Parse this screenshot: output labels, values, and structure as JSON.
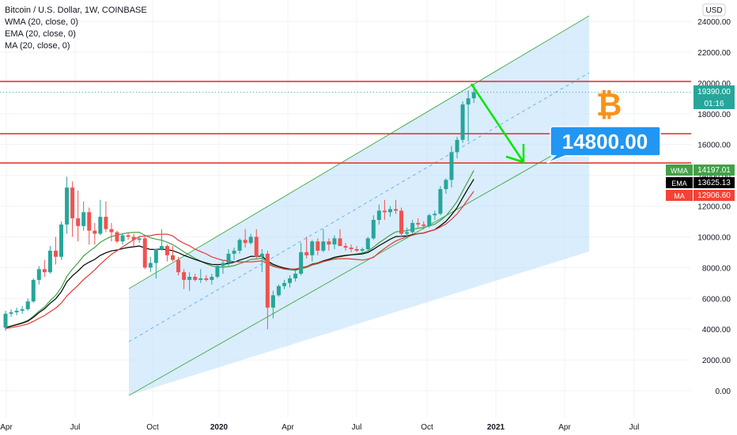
{
  "legend": {
    "title": "Bitcoin / U.S. Dollar, 1W, COINBASE",
    "wma": "WMA (20, close, 0)",
    "ema": "EMA (20, close, 0)",
    "ma": "MA (20, close, 0)"
  },
  "currency": "USD",
  "colors": {
    "up": "#26a69a",
    "down": "#ef5350",
    "wma": "#43a047",
    "ema": "#000000",
    "ma": "#e53935",
    "channel_fill": "#bbdefb",
    "channel_line": "#4caf50",
    "hline": "#e53935",
    "arrow": "#00e600",
    "callout": "#2196f3",
    "bitcoin": "#f7931a"
  },
  "yaxis_ticks": [
    "24000.00",
    "22000.00",
    "20000.00",
    "18000.00",
    "16000.00",
    "14000.00",
    "12000.00",
    "10000.00",
    "8000.00",
    "6000.00",
    "4000.00",
    "2000.00",
    "0.00"
  ],
  "xaxis_ticks": [
    {
      "label": "Apr",
      "bold": false
    },
    {
      "label": "Jul",
      "bold": false
    },
    {
      "label": "Oct",
      "bold": false
    },
    {
      "label": "2020",
      "bold": true
    },
    {
      "label": "Apr",
      "bold": false
    },
    {
      "label": "Jul",
      "bold": false
    },
    {
      "label": "Oct",
      "bold": false
    },
    {
      "label": "2021",
      "bold": true
    },
    {
      "label": "Apr",
      "bold": false
    },
    {
      "label": "Jul",
      "bold": false
    }
  ],
  "price_labels": {
    "last": "19390.00",
    "countdown": "01:16",
    "wma_label": "WMA",
    "wma_value": "14197.01",
    "ema_label": "EMA",
    "ema_value": "13625.13",
    "ma_label": "MA",
    "ma_value": "12906.60"
  },
  "callout": "14800.00",
  "bitcoin_symbol": "₿",
  "chart_data": {
    "type": "candlestick",
    "title": "Bitcoin / U.S. Dollar, 1W, COINBASE",
    "ylim": [
      -1000,
      25000
    ],
    "y_unit": "USD",
    "horizontal_lines": [
      20100,
      16700,
      14800
    ],
    "last_price": 19390,
    "candles": [
      [
        4100,
        5200,
        3900,
        5000
      ],
      [
        5000,
        5300,
        4800,
        5100
      ],
      [
        5100,
        5400,
        4900,
        5200
      ],
      [
        5200,
        5500,
        5000,
        5300
      ],
      [
        5300,
        6000,
        5200,
        5800
      ],
      [
        5800,
        7300,
        5700,
        7200
      ],
      [
        7200,
        8100,
        6900,
        7900
      ],
      [
        7900,
        8500,
        7400,
        7700
      ],
      [
        7700,
        9400,
        7600,
        9100
      ],
      [
        9100,
        10000,
        8200,
        8700
      ],
      [
        8700,
        11000,
        8500,
        10800
      ],
      [
        10800,
        13900,
        10200,
        13200
      ],
      [
        13200,
        13600,
        10000,
        11200
      ],
      [
        11200,
        13000,
        9700,
        10700
      ],
      [
        10700,
        12300,
        10400,
        11600
      ],
      [
        11600,
        11900,
        9500,
        10400
      ],
      [
        10400,
        10900,
        9500,
        10200
      ],
      [
        10200,
        12400,
        10100,
        11300
      ],
      [
        11300,
        12300,
        10300,
        10500
      ],
      [
        10500,
        10900,
        9700,
        10300
      ],
      [
        10300,
        10400,
        9600,
        9700
      ],
      [
        9700,
        10200,
        9500,
        10100
      ],
      [
        10100,
        10300,
        9800,
        10000
      ],
      [
        10000,
        10200,
        9400,
        9800
      ],
      [
        9800,
        10000,
        9600,
        9900
      ],
      [
        9900,
        10100,
        7900,
        8000
      ],
      [
        8000,
        8700,
        7700,
        8300
      ],
      [
        8300,
        9000,
        7300,
        9200
      ],
      [
        9200,
        10500,
        9100,
        9400
      ],
      [
        9400,
        9500,
        8400,
        8800
      ],
      [
        8800,
        9400,
        8400,
        8500
      ],
      [
        8500,
        8700,
        7500,
        7700
      ],
      [
        7700,
        7900,
        6600,
        7200
      ],
      [
        7200,
        7700,
        6500,
        7400
      ],
      [
        7400,
        7600,
        7100,
        7200
      ],
      [
        7200,
        7900,
        7000,
        7300
      ],
      [
        7300,
        7500,
        7100,
        7200
      ],
      [
        7200,
        7600,
        6900,
        7400
      ],
      [
        7400,
        8200,
        7300,
        8100
      ],
      [
        8100,
        8500,
        7600,
        8300
      ],
      [
        8300,
        9200,
        8100,
        8900
      ],
      [
        8900,
        9300,
        8500,
        9100
      ],
      [
        9100,
        9900,
        8900,
        9800
      ],
      [
        9800,
        10500,
        9300,
        9600
      ],
      [
        9600,
        10200,
        9500,
        10000
      ],
      [
        10000,
        10500,
        8600,
        8700
      ],
      [
        8700,
        9200,
        7700,
        8900
      ],
      [
        8900,
        9100,
        4000,
        5400
      ],
      [
        5400,
        6500,
        4700,
        6200
      ],
      [
        6200,
        6900,
        6100,
        6800
      ],
      [
        6800,
        7200,
        6600,
        7000
      ],
      [
        7000,
        7500,
        6700,
        7300
      ],
      [
        7300,
        7800,
        7100,
        7600
      ],
      [
        7600,
        9600,
        7500,
        9000
      ],
      [
        9000,
        10000,
        8600,
        8800
      ],
      [
        8800,
        9800,
        8400,
        9700
      ],
      [
        9700,
        9900,
        8800,
        9100
      ],
      [
        9100,
        10500,
        9000,
        9700
      ],
      [
        9700,
        9900,
        9100,
        9500
      ],
      [
        9500,
        10100,
        9200,
        9900
      ],
      [
        9900,
        10500,
        9600,
        9400
      ],
      [
        9400,
        9600,
        9100,
        9300
      ],
      [
        9300,
        9500,
        9000,
        9200
      ],
      [
        9200,
        9400,
        9000,
        9100
      ],
      [
        9100,
        9300,
        8900,
        9200
      ],
      [
        9200,
        10000,
        9100,
        9900
      ],
      [
        9900,
        11400,
        9800,
        11100
      ],
      [
        11100,
        12100,
        10800,
        11700
      ],
      [
        11700,
        12400,
        11100,
        11600
      ],
      [
        11600,
        12000,
        11300,
        11800
      ],
      [
        11800,
        12400,
        11500,
        11700
      ],
      [
        11700,
        11900,
        10000,
        10200
      ],
      [
        10200,
        10600,
        9900,
        10300
      ],
      [
        10300,
        11100,
        10200,
        10900
      ],
      [
        10900,
        11200,
        10600,
        10800
      ],
      [
        10800,
        11000,
        10500,
        10700
      ],
      [
        10700,
        11500,
        10600,
        11400
      ],
      [
        11400,
        11700,
        11100,
        11500
      ],
      [
        11500,
        13300,
        11400,
        13100
      ],
      [
        13100,
        13800,
        12800,
        13700
      ],
      [
        13700,
        15900,
        13200,
        15500
      ],
      [
        15500,
        16500,
        15100,
        16300
      ],
      [
        16300,
        18800,
        16100,
        18600
      ],
      [
        18600,
        19500,
        16200,
        19000
      ],
      [
        19000,
        19900,
        18700,
        19400
      ]
    ],
    "series": [
      {
        "name": "WMA (20, close, 0)",
        "last": 14197.01
      },
      {
        "name": "EMA (20, close, 0)",
        "last": 13625.13
      },
      {
        "name": "MA (20, close, 0)",
        "last": 12906.6
      }
    ]
  }
}
